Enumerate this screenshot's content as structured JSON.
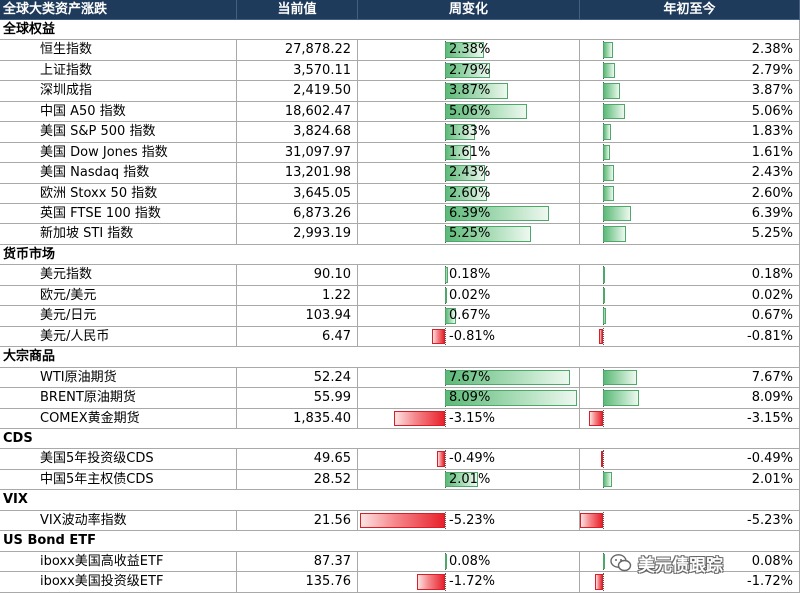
{
  "table": {
    "headers": [
      "全球大类资产涨跌",
      "当前值",
      "周变化",
      "年初至今"
    ],
    "colors": {
      "header_bg": "#1f3b5c",
      "header_text": "#ffffff",
      "positive": "#5cb978",
      "negative": "#e8212b"
    },
    "sections": [
      {
        "title": "全球权益",
        "rows": [
          {
            "name": "恒生指数",
            "value": "27,878.22",
            "week": "2.38%",
            "ytd": "2.38%"
          },
          {
            "name": "上证指数",
            "value": "3,570.11",
            "week": "2.79%",
            "ytd": "2.79%"
          },
          {
            "name": "深圳成指",
            "value": "2,419.50",
            "week": "3.87%",
            "ytd": "3.87%"
          },
          {
            "name": "中国 A50 指数",
            "value": "18,602.47",
            "week": "5.06%",
            "ytd": "5.06%"
          },
          {
            "name": "美国 S&P 500 指数",
            "value": "3,824.68",
            "week": "1.83%",
            "ytd": "1.83%"
          },
          {
            "name": "美国 Dow Jones 指数",
            "value": "31,097.97",
            "week": "1.61%",
            "ytd": "1.61%"
          },
          {
            "name": "美国 Nasdaq 指数",
            "value": "13,201.98",
            "week": "2.43%",
            "ytd": "2.43%"
          },
          {
            "name": "欧洲 Stoxx 50 指数",
            "value": "3,645.05",
            "week": "2.60%",
            "ytd": "2.60%"
          },
          {
            "name": "英国 FTSE 100 指数",
            "value": "6,873.26",
            "week": "6.39%",
            "ytd": "6.39%"
          },
          {
            "name": "新加坡 STI 指数",
            "value": "2,993.19",
            "week": "5.25%",
            "ytd": "5.25%"
          }
        ]
      },
      {
        "title": "货币市场",
        "rows": [
          {
            "name": "美元指数",
            "value": "90.10",
            "week": "0.18%",
            "ytd": "0.18%"
          },
          {
            "name": "欧元/美元",
            "value": "1.22",
            "week": "0.02%",
            "ytd": "0.02%"
          },
          {
            "name": "美元/日元",
            "value": "103.94",
            "week": "0.67%",
            "ytd": "0.67%"
          },
          {
            "name": "美元/人民币",
            "value": "6.47",
            "week": "-0.81%",
            "ytd": "-0.81%"
          }
        ]
      },
      {
        "title": "大宗商品",
        "rows": [
          {
            "name": "WTI原油期货",
            "value": "52.24",
            "week": "7.67%",
            "ytd": "7.67%"
          },
          {
            "name": "BRENT原油期货",
            "value": "55.99",
            "week": "8.09%",
            "ytd": "8.09%"
          },
          {
            "name": "COMEX黄金期货",
            "value": "1,835.40",
            "week": "-3.15%",
            "ytd": "-3.15%"
          }
        ]
      },
      {
        "title": "CDS",
        "rows": [
          {
            "name": "美国5年投资级CDS",
            "value": "49.65",
            "week": "-0.49%",
            "ytd": "-0.49%"
          },
          {
            "name": "中国5年主权债CDS",
            "value": "28.52",
            "week": "2.01%",
            "ytd": "2.01%"
          }
        ]
      },
      {
        "title": "VIX",
        "rows": [
          {
            "name": "VIX波动率指数",
            "value": "21.56",
            "week": "-5.23%",
            "ytd": "-5.23%"
          }
        ]
      },
      {
        "title": "US Bond ETF",
        "rows": [
          {
            "name": "iboxx美国高收益ETF",
            "value": "87.37",
            "week": "0.08%",
            "ytd": "0.08%"
          },
          {
            "name": "iboxx美国投资级ETF",
            "value": "135.76",
            "week": "-1.72%",
            "ytd": "-1.72%"
          }
        ]
      }
    ]
  },
  "chart_data": {
    "type": "table",
    "columns": [
      "全球大类资产涨跌",
      "当前值",
      "周变化",
      "年初至今"
    ],
    "rows": [
      {
        "section": "全球权益",
        "name": "恒生指数",
        "current": 27878.22,
        "week_pct": 2.38,
        "ytd_pct": 2.38
      },
      {
        "section": "全球权益",
        "name": "上证指数",
        "current": 3570.11,
        "week_pct": 2.79,
        "ytd_pct": 2.79
      },
      {
        "section": "全球权益",
        "name": "深圳成指",
        "current": 2419.5,
        "week_pct": 3.87,
        "ytd_pct": 3.87
      },
      {
        "section": "全球权益",
        "name": "中国 A50 指数",
        "current": 18602.47,
        "week_pct": 5.06,
        "ytd_pct": 5.06
      },
      {
        "section": "全球权益",
        "name": "美国 S&P 500 指数",
        "current": 3824.68,
        "week_pct": 1.83,
        "ytd_pct": 1.83
      },
      {
        "section": "全球权益",
        "name": "美国 Dow Jones 指数",
        "current": 31097.97,
        "week_pct": 1.61,
        "ytd_pct": 1.61
      },
      {
        "section": "全球权益",
        "name": "美国 Nasdaq 指数",
        "current": 13201.98,
        "week_pct": 2.43,
        "ytd_pct": 2.43
      },
      {
        "section": "全球权益",
        "name": "欧洲 Stoxx 50 指数",
        "current": 3645.05,
        "week_pct": 2.6,
        "ytd_pct": 2.6
      },
      {
        "section": "全球权益",
        "name": "英国 FTSE 100 指数",
        "current": 6873.26,
        "week_pct": 6.39,
        "ytd_pct": 6.39
      },
      {
        "section": "全球权益",
        "name": "新加坡 STI 指数",
        "current": 2993.19,
        "week_pct": 5.25,
        "ytd_pct": 5.25
      },
      {
        "section": "货币市场",
        "name": "美元指数",
        "current": 90.1,
        "week_pct": 0.18,
        "ytd_pct": 0.18
      },
      {
        "section": "货币市场",
        "name": "欧元/美元",
        "current": 1.22,
        "week_pct": 0.02,
        "ytd_pct": 0.02
      },
      {
        "section": "货币市场",
        "name": "美元/日元",
        "current": 103.94,
        "week_pct": 0.67,
        "ytd_pct": 0.67
      },
      {
        "section": "货币市场",
        "name": "美元/人民币",
        "current": 6.47,
        "week_pct": -0.81,
        "ytd_pct": -0.81
      },
      {
        "section": "大宗商品",
        "name": "WTI原油期货",
        "current": 52.24,
        "week_pct": 7.67,
        "ytd_pct": 7.67
      },
      {
        "section": "大宗商品",
        "name": "BRENT原油期货",
        "current": 55.99,
        "week_pct": 8.09,
        "ytd_pct": 8.09
      },
      {
        "section": "大宗商品",
        "name": "COMEX黄金期货",
        "current": 1835.4,
        "week_pct": -3.15,
        "ytd_pct": -3.15
      },
      {
        "section": "CDS",
        "name": "美国5年投资级CDS",
        "current": 49.65,
        "week_pct": -0.49,
        "ytd_pct": -0.49
      },
      {
        "section": "CDS",
        "name": "中国5年主权债CDS",
        "current": 28.52,
        "week_pct": 2.01,
        "ytd_pct": 2.01
      },
      {
        "section": "VIX",
        "name": "VIX波动率指数",
        "current": 21.56,
        "week_pct": -5.23,
        "ytd_pct": -5.23
      },
      {
        "section": "US Bond ETF",
        "name": "iboxx美国高收益ETF",
        "current": 87.37,
        "week_pct": 0.08,
        "ytd_pct": 0.08
      },
      {
        "section": "US Bond ETF",
        "name": "iboxx美国投资级ETF",
        "current": 135.76,
        "week_pct": -1.72,
        "ytd_pct": -1.72
      }
    ]
  },
  "watermark": {
    "text": "美元债跟踪",
    "icon": "wechat-icon"
  }
}
